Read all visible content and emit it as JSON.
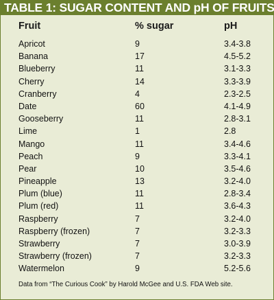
{
  "title": "TABLE 1: SUGAR CONTENT AND pH OF FRUITS",
  "columns": {
    "fruit": "Fruit",
    "sugar": "% sugar",
    "ph": "pH"
  },
  "rows": [
    {
      "fruit": "Apricot",
      "sugar": "9",
      "ph": "3.4-3.8"
    },
    {
      "fruit": "Banana",
      "sugar": "17",
      "ph": "4.5-5.2"
    },
    {
      "fruit": "Blueberry",
      "sugar": "11",
      "ph": "3.1-3.3"
    },
    {
      "fruit": "Cherry",
      "sugar": "14",
      "ph": "3.3-3.9"
    },
    {
      "fruit": "Cranberry",
      "sugar": "4",
      "ph": "2.3-2.5"
    },
    {
      "fruit": "Date",
      "sugar": "60",
      "ph": "4.1-4.9"
    },
    {
      "fruit": "Gooseberry",
      "sugar": "11",
      "ph": "2.8-3.1"
    },
    {
      "fruit": "Lime",
      "sugar": "1",
      "ph": "2.8"
    },
    {
      "fruit": "Mango",
      "sugar": "11",
      "ph": "3.4-4.6"
    },
    {
      "fruit": "Peach",
      "sugar": "9",
      "ph": "3.3-4.1"
    },
    {
      "fruit": "Pear",
      "sugar": "10",
      "ph": "3.5-4.6"
    },
    {
      "fruit": "Pineapple",
      "sugar": "13",
      "ph": "3.2-4.0"
    },
    {
      "fruit": "Plum (blue)",
      "sugar": "11",
      "ph": "2.8-3.4"
    },
    {
      "fruit": "Plum (red)",
      "sugar": "11",
      "ph": "3.6-4.3"
    },
    {
      "fruit": "Raspberry",
      "sugar": "7",
      "ph": "3.2-4.0"
    },
    {
      "fruit": "Raspberry (frozen)",
      "sugar": "7",
      "ph": "3.2-3.3"
    },
    {
      "fruit": "Strawberry",
      "sugar": "7",
      "ph": "3.0-3.9"
    },
    {
      "fruit": "Strawberry (frozen)",
      "sugar": "7",
      "ph": "3.2-3.3"
    },
    {
      "fruit": "Watermelon",
      "sugar": "9",
      "ph": "5.2-5.6"
    }
  ],
  "footnote": "Data from “The Curious Cook” by Harold McGee and U.S. FDA Web site.",
  "colors": {
    "title_bar": "#6b7f2e",
    "panel_background": "#e9ecd6"
  }
}
